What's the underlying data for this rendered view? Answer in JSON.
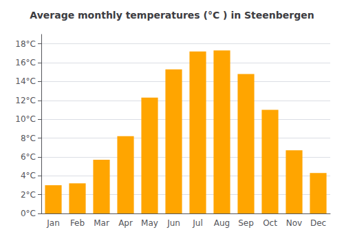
{
  "chart_data": {
    "type": "bar",
    "title": "Average monthly temperatures (°C ) in Steenbergen",
    "categories": [
      "Jan",
      "Feb",
      "Mar",
      "Apr",
      "May",
      "Jun",
      "Jul",
      "Aug",
      "Sep",
      "Oct",
      "Nov",
      "Dec"
    ],
    "values": [
      3.0,
      3.2,
      5.7,
      8.2,
      12.3,
      15.3,
      17.2,
      17.3,
      14.8,
      11.0,
      6.7,
      4.3
    ],
    "color": "#FFA500",
    "ylim": [
      0,
      19
    ],
    "yticks": [
      {
        "value": 0,
        "label": "0°C"
      },
      {
        "value": 2,
        "label": "2°C"
      },
      {
        "value": 4,
        "label": "4°C"
      },
      {
        "value": 6,
        "label": "6°C"
      },
      {
        "value": 8,
        "label": "8°C"
      },
      {
        "value": 10,
        "label": "10°C"
      },
      {
        "value": 12,
        "label": "12°C"
      },
      {
        "value": 14,
        "label": "14°C"
      },
      {
        "value": 16,
        "label": "16°C"
      },
      {
        "value": 18,
        "label": "18°C"
      }
    ],
    "grid": true
  }
}
